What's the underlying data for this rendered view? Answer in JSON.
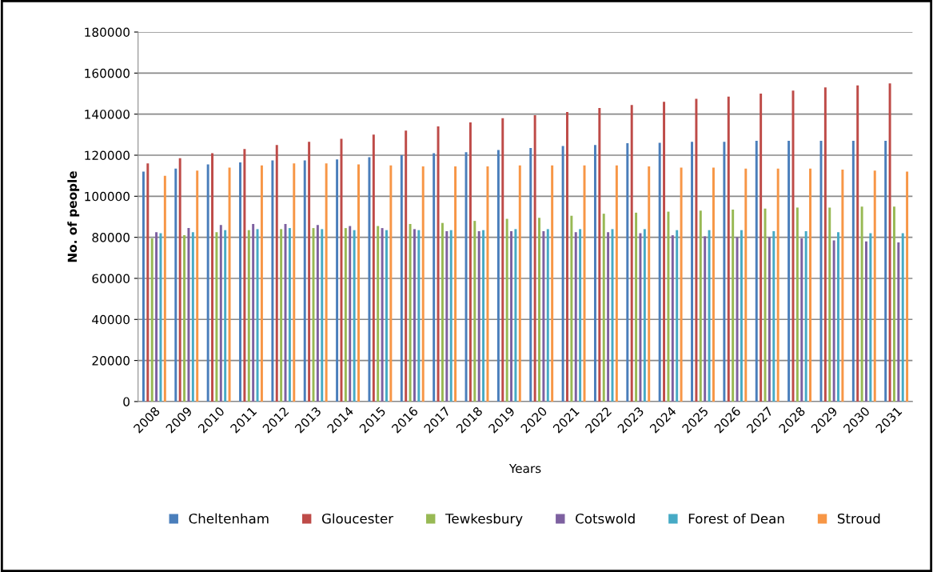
{
  "chart_data": {
    "type": "bar",
    "xlabel": "Years",
    "ylabel": "No. of people",
    "categories": [
      "2008",
      "2009",
      "2010",
      "2011",
      "2012",
      "2013",
      "2014",
      "2015",
      "2016",
      "2017",
      "2018",
      "2019",
      "2020",
      "2021",
      "2022",
      "2023",
      "2024",
      "2025",
      "2026",
      "2027",
      "2028",
      "2029",
      "2030",
      "2031"
    ],
    "series": [
      {
        "name": "Cheltenham",
        "color": "#4a7ebb",
        "values": [
          112000,
          113500,
          115500,
          116500,
          117500,
          117500,
          118000,
          119000,
          120000,
          121000,
          121500,
          122500,
          123500,
          124500,
          125000,
          125800,
          126000,
          126500,
          126500,
          127000,
          127000,
          127000,
          127000,
          127000
        ]
      },
      {
        "name": "Gloucester",
        "color": "#be4b48",
        "values": [
          116000,
          118500,
          121000,
          123000,
          125000,
          126500,
          128000,
          130000,
          132000,
          134000,
          136000,
          138000,
          139500,
          141000,
          143000,
          144500,
          146000,
          147500,
          148500,
          150000,
          151500,
          153000,
          154000,
          155000
        ]
      },
      {
        "name": "Tewkesbury",
        "color": "#98b954",
        "values": [
          79500,
          81000,
          82500,
          83500,
          84000,
          84500,
          84500,
          85500,
          86500,
          87000,
          88000,
          89000,
          89500,
          90500,
          91500,
          92000,
          92500,
          93000,
          93500,
          94000,
          94500,
          94500,
          95000,
          95000
        ]
      },
      {
        "name": "Cotswold",
        "color": "#7d60a0",
        "values": [
          82500,
          84500,
          86000,
          86500,
          86500,
          86000,
          85500,
          84500,
          84000,
          83000,
          83000,
          83000,
          83000,
          82500,
          82500,
          82000,
          81000,
          80500,
          80000,
          80000,
          79500,
          78500,
          78000,
          77500
        ]
      },
      {
        "name": "Forest of Dean",
        "color": "#46aac5",
        "values": [
          82000,
          82500,
          83500,
          84000,
          84500,
          84000,
          83500,
          83500,
          83500,
          83500,
          83500,
          84000,
          84000,
          84000,
          84000,
          84000,
          83500,
          83500,
          83500,
          83000,
          83000,
          82500,
          82000,
          82000
        ]
      },
      {
        "name": "Stroud",
        "color": "#f79646",
        "values": [
          110000,
          112500,
          114000,
          115000,
          116000,
          116000,
          115500,
          115000,
          114500,
          114500,
          114500,
          115000,
          115000,
          115000,
          115000,
          114500,
          114000,
          114000,
          113500,
          113500,
          113500,
          113000,
          112500,
          112000
        ]
      }
    ],
    "ylim": [
      0,
      180000
    ],
    "yticks": [
      0,
      20000,
      40000,
      60000,
      80000,
      100000,
      120000,
      140000,
      160000,
      180000
    ],
    "grid": "y",
    "legend": "bottom"
  }
}
